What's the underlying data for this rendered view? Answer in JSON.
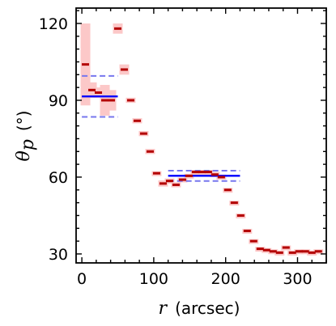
{
  "chart_data": {
    "type": "scatter",
    "title": "",
    "xlabel": {
      "symbol": "r",
      "unit": "(arcsec)"
    },
    "ylabel": {
      "symbol": "θ",
      "subscript": "p",
      "unit": "(°)"
    },
    "xlim": [
      -8,
      340
    ],
    "ylim": [
      26.5,
      126
    ],
    "x_ticks": [
      0,
      100,
      200,
      300
    ],
    "y_ticks": [
      30,
      60,
      90,
      120
    ],
    "x_minor_step": 20,
    "y_minor_step": 5,
    "grid": false,
    "legend": "none",
    "colors": {
      "points": "#b30000",
      "error_boxes": "#fcc8c8",
      "fit_line": "#0000ff",
      "fit_band": "#7777ee"
    },
    "series": [
      {
        "x": [
          5,
          14,
          23,
          32,
          41,
          50,
          59,
          68,
          77,
          86,
          95,
          104,
          113,
          122,
          131,
          140,
          149,
          158,
          167,
          176,
          185,
          194,
          203,
          212,
          221,
          230,
          239,
          248,
          257,
          266,
          275,
          284,
          293,
          302,
          311,
          320,
          329
        ],
        "y": [
          104,
          94,
          93,
          90,
          90,
          118,
          102,
          90,
          82,
          77,
          70,
          61.5,
          57.5,
          58.5,
          57,
          59,
          60.5,
          62,
          62,
          62,
          61,
          60,
          55,
          50,
          45,
          39,
          35,
          32,
          31.5,
          31,
          30.5,
          32.5,
          30.5,
          31,
          31,
          30.5,
          31
        ],
        "err": [
          16,
          3,
          2,
          6,
          4,
          2,
          2,
          1,
          1,
          1,
          1,
          0.8,
          1.2,
          1,
          1,
          0.8,
          0.8,
          0.8,
          0.8,
          0.8,
          1,
          1,
          0.8,
          0.8,
          0.8,
          0.8,
          0.8,
          0.8,
          0.8,
          0.8,
          0.8,
          0.8,
          0.8,
          0.8,
          0.8,
          0.8,
          0.8
        ]
      }
    ],
    "fits": [
      {
        "x": [
          0,
          50
        ],
        "mean": 91.5,
        "lower": 83.5,
        "upper": 99.5
      },
      {
        "x": [
          120,
          220
        ],
        "mean": 60.5,
        "lower": 58.5,
        "upper": 62.5
      }
    ]
  }
}
